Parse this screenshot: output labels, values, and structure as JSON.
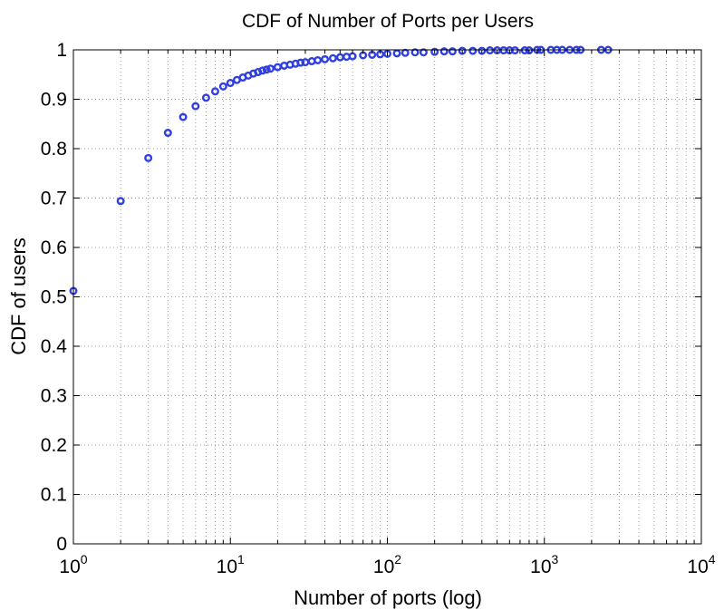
{
  "chart_data": {
    "type": "scatter",
    "title": "CDF of Number of Ports per Users",
    "xlabel": "Number of ports (log)",
    "ylabel": "CDF of users",
    "x_scale": "log",
    "xlim": [
      1,
      10000
    ],
    "ylim": [
      0,
      1
    ],
    "grid": true,
    "legend": "none",
    "color": "#2f3fe0",
    "x_ticks": [
      {
        "base": "10",
        "exp": "0",
        "value": 1
      },
      {
        "base": "10",
        "exp": "1",
        "value": 10
      },
      {
        "base": "10",
        "exp": "2",
        "value": 100
      },
      {
        "base": "10",
        "exp": "3",
        "value": 1000
      },
      {
        "base": "10",
        "exp": "4",
        "value": 10000
      }
    ],
    "y_ticks": [
      "0",
      "0.1",
      "0.2",
      "0.3",
      "0.4",
      "0.5",
      "0.6",
      "0.7",
      "0.8",
      "0.9",
      "1"
    ],
    "points": [
      [
        1,
        0.512
      ],
      [
        2,
        0.694
      ],
      [
        3,
        0.781
      ],
      [
        4,
        0.832
      ],
      [
        5,
        0.864
      ],
      [
        6,
        0.886
      ],
      [
        7,
        0.903
      ],
      [
        8,
        0.916
      ],
      [
        9,
        0.926
      ],
      [
        10,
        0.933
      ],
      [
        11,
        0.939
      ],
      [
        12,
        0.944
      ],
      [
        13,
        0.948
      ],
      [
        14,
        0.952
      ],
      [
        15,
        0.955
      ],
      [
        16,
        0.958
      ],
      [
        17,
        0.96
      ],
      [
        18,
        0.962
      ],
      [
        20,
        0.965
      ],
      [
        22,
        0.968
      ],
      [
        24,
        0.97
      ],
      [
        26,
        0.972
      ],
      [
        28,
        0.974
      ],
      [
        30,
        0.975
      ],
      [
        33,
        0.977
      ],
      [
        36,
        0.979
      ],
      [
        40,
        0.981
      ],
      [
        45,
        0.983
      ],
      [
        50,
        0.985
      ],
      [
        55,
        0.986
      ],
      [
        60,
        0.987
      ],
      [
        70,
        0.989
      ],
      [
        80,
        0.99
      ],
      [
        90,
        0.991
      ],
      [
        100,
        0.992
      ],
      [
        115,
        0.993
      ],
      [
        130,
        0.994
      ],
      [
        150,
        0.995
      ],
      [
        170,
        0.995
      ],
      [
        200,
        0.996
      ],
      [
        230,
        0.997
      ],
      [
        260,
        0.997
      ],
      [
        300,
        0.998
      ],
      [
        350,
        0.998
      ],
      [
        400,
        0.998
      ],
      [
        450,
        0.999
      ],
      [
        500,
        0.999
      ],
      [
        550,
        0.999
      ],
      [
        600,
        0.999
      ],
      [
        650,
        0.999
      ],
      [
        750,
        0.999
      ],
      [
        800,
        0.999
      ],
      [
        900,
        1.0
      ],
      [
        950,
        1.0
      ],
      [
        1100,
        1.0
      ],
      [
        1200,
        1.0
      ],
      [
        1300,
        1.0
      ],
      [
        1450,
        1.0
      ],
      [
        1600,
        1.0
      ],
      [
        1700,
        1.0
      ],
      [
        2300,
        1.0
      ],
      [
        2550,
        1.0
      ]
    ]
  }
}
